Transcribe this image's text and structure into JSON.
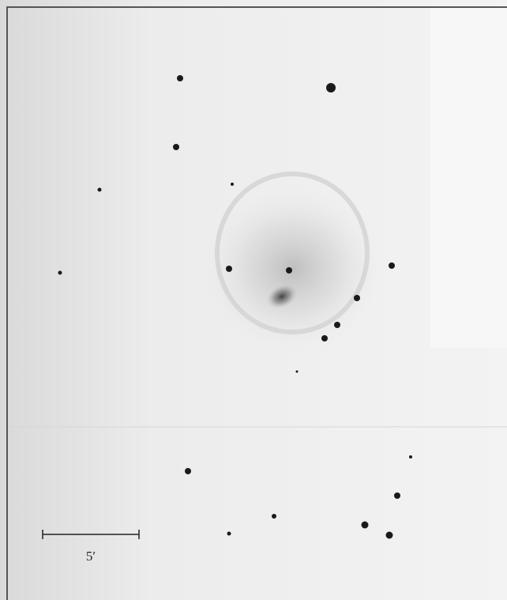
{
  "scale_bar": {
    "label": "5′"
  }
}
